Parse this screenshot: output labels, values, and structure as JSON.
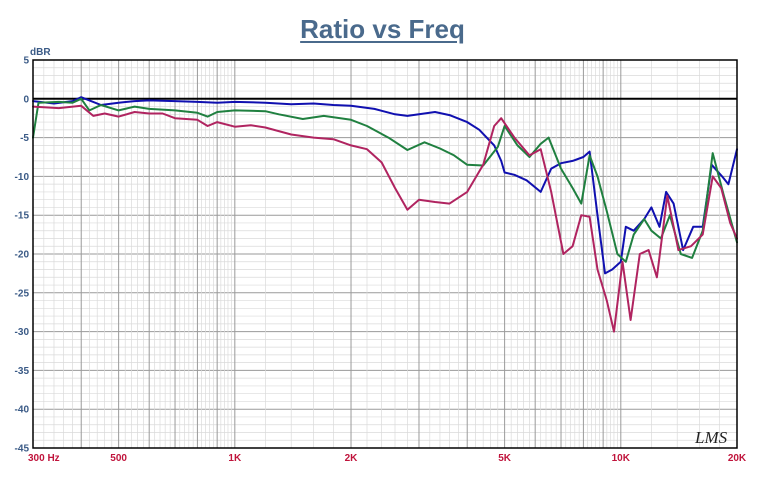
{
  "chart_data": {
    "type": "line",
    "title": "Ratio vs Freq",
    "ylabel": "dBR",
    "xscale": "log",
    "xlim": [
      300,
      20000
    ],
    "ylim": [
      -45,
      5
    ],
    "grid": true,
    "legend": "none",
    "watermark": "LMS",
    "y_ticks": [
      "5",
      "0",
      "-5",
      "-10",
      "-15",
      "-20",
      "-25",
      "-30",
      "-35",
      "-40",
      "-45"
    ],
    "x_ticks": [
      {
        "value": 300,
        "label": "300 Hz"
      },
      {
        "value": 500,
        "label": "500"
      },
      {
        "value": 1000,
        "label": "1K"
      },
      {
        "value": 2000,
        "label": "2K"
      },
      {
        "value": 5000,
        "label": "5K"
      },
      {
        "value": 10000,
        "label": "10K"
      },
      {
        "value": 20000,
        "label": "20K"
      }
    ],
    "series": [
      {
        "color": "#1010b0",
        "points": [
          [
            300,
            -0.3
          ],
          [
            340,
            -0.6
          ],
          [
            380,
            -0.3
          ],
          [
            400,
            0.2
          ],
          [
            420,
            -0.2
          ],
          [
            450,
            -0.8
          ],
          [
            500,
            -0.5
          ],
          [
            550,
            -0.3
          ],
          [
            600,
            -0.2
          ],
          [
            700,
            -0.3
          ],
          [
            800,
            -0.4
          ],
          [
            900,
            -0.5
          ],
          [
            1000,
            -0.4
          ],
          [
            1200,
            -0.5
          ],
          [
            1400,
            -0.7
          ],
          [
            1600,
            -0.6
          ],
          [
            1800,
            -0.8
          ],
          [
            2000,
            -0.9
          ],
          [
            2300,
            -1.3
          ],
          [
            2600,
            -2.0
          ],
          [
            2800,
            -2.2
          ],
          [
            3000,
            -2.0
          ],
          [
            3300,
            -1.7
          ],
          [
            3600,
            -2.1
          ],
          [
            4000,
            -3.0
          ],
          [
            4300,
            -4.0
          ],
          [
            4700,
            -6.0
          ],
          [
            4900,
            -8.0
          ],
          [
            5000,
            -9.5
          ],
          [
            5300,
            -9.8
          ],
          [
            5700,
            -10.5
          ],
          [
            6200,
            -12.0
          ],
          [
            6600,
            -9.0
          ],
          [
            7000,
            -8.3
          ],
          [
            7500,
            -8.0
          ],
          [
            8000,
            -7.5
          ],
          [
            8300,
            -6.8
          ],
          [
            8700,
            -15.0
          ],
          [
            9100,
            -22.5
          ],
          [
            9500,
            -22.0
          ],
          [
            10000,
            -21.0
          ],
          [
            10300,
            -16.5
          ],
          [
            10800,
            -17.0
          ],
          [
            11500,
            -15.5
          ],
          [
            12000,
            -14.0
          ],
          [
            12600,
            -16.5
          ],
          [
            13100,
            -12.0
          ],
          [
            13700,
            -13.5
          ],
          [
            14500,
            -19.5
          ],
          [
            15400,
            -16.5
          ],
          [
            16300,
            -16.5
          ],
          [
            17200,
            -8.5
          ],
          [
            18300,
            -10.0
          ],
          [
            19000,
            -11.0
          ],
          [
            20000,
            -6.5
          ]
        ]
      },
      {
        "color": "#208040",
        "points": [
          [
            300,
            -5.0
          ],
          [
            310,
            -0.5
          ],
          [
            350,
            -0.4
          ],
          [
            380,
            -0.5
          ],
          [
            400,
            0.0
          ],
          [
            420,
            -1.5
          ],
          [
            450,
            -0.8
          ],
          [
            500,
            -1.5
          ],
          [
            550,
            -1.0
          ],
          [
            600,
            -1.3
          ],
          [
            700,
            -1.5
          ],
          [
            800,
            -1.8
          ],
          [
            850,
            -2.3
          ],
          [
            900,
            -1.7
          ],
          [
            1000,
            -1.5
          ],
          [
            1200,
            -1.6
          ],
          [
            1300,
            -2.0
          ],
          [
            1500,
            -2.6
          ],
          [
            1700,
            -2.2
          ],
          [
            2000,
            -2.7
          ],
          [
            2200,
            -3.5
          ],
          [
            2500,
            -5.0
          ],
          [
            2800,
            -6.6
          ],
          [
            3100,
            -5.6
          ],
          [
            3400,
            -6.4
          ],
          [
            3700,
            -7.3
          ],
          [
            4000,
            -8.5
          ],
          [
            4400,
            -8.6
          ],
          [
            4800,
            -6.2
          ],
          [
            5000,
            -3.5
          ],
          [
            5400,
            -6.0
          ],
          [
            5800,
            -7.5
          ],
          [
            6200,
            -5.8
          ],
          [
            6500,
            -5.0
          ],
          [
            7000,
            -9.0
          ],
          [
            7500,
            -11.5
          ],
          [
            7900,
            -13.5
          ],
          [
            8300,
            -7.3
          ],
          [
            8700,
            -10.0
          ],
          [
            9200,
            -14.5
          ],
          [
            9800,
            -20.0
          ],
          [
            10300,
            -21.0
          ],
          [
            10800,
            -17.5
          ],
          [
            11500,
            -15.5
          ],
          [
            12000,
            -17.0
          ],
          [
            12700,
            -18.0
          ],
          [
            13400,
            -15.0
          ],
          [
            14300,
            -20.0
          ],
          [
            15300,
            -20.5
          ],
          [
            16300,
            -17.0
          ],
          [
            17300,
            -7.0
          ],
          [
            18500,
            -12.5
          ],
          [
            20000,
            -18.5
          ]
        ]
      },
      {
        "color": "#b02460",
        "points": [
          [
            300,
            -1.0
          ],
          [
            350,
            -1.2
          ],
          [
            400,
            -0.9
          ],
          [
            430,
            -2.2
          ],
          [
            460,
            -1.9
          ],
          [
            500,
            -2.3
          ],
          [
            550,
            -1.7
          ],
          [
            600,
            -1.9
          ],
          [
            650,
            -1.9
          ],
          [
            700,
            -2.5
          ],
          [
            800,
            -2.7
          ],
          [
            850,
            -3.5
          ],
          [
            900,
            -3.0
          ],
          [
            1000,
            -3.6
          ],
          [
            1100,
            -3.4
          ],
          [
            1200,
            -3.7
          ],
          [
            1400,
            -4.6
          ],
          [
            1600,
            -5.0
          ],
          [
            1800,
            -5.2
          ],
          [
            2000,
            -6.0
          ],
          [
            2200,
            -6.5
          ],
          [
            2400,
            -8.2
          ],
          [
            2600,
            -11.5
          ],
          [
            2800,
            -14.3
          ],
          [
            3000,
            -13.0
          ],
          [
            3300,
            -13.3
          ],
          [
            3600,
            -13.5
          ],
          [
            4000,
            -12.0
          ],
          [
            4400,
            -8.5
          ],
          [
            4700,
            -3.5
          ],
          [
            4900,
            -2.5
          ],
          [
            5300,
            -5.0
          ],
          [
            5800,
            -7.3
          ],
          [
            6200,
            -6.5
          ],
          [
            6600,
            -12.0
          ],
          [
            7100,
            -20.0
          ],
          [
            7500,
            -19.0
          ],
          [
            7900,
            -15.0
          ],
          [
            8300,
            -15.2
          ],
          [
            8700,
            -22.0
          ],
          [
            9200,
            -26.0
          ],
          [
            9600,
            -30.0
          ],
          [
            10100,
            -21.0
          ],
          [
            10600,
            -28.5
          ],
          [
            11200,
            -20.0
          ],
          [
            11800,
            -19.5
          ],
          [
            12400,
            -23.0
          ],
          [
            13200,
            -12.5
          ],
          [
            14100,
            -19.5
          ],
          [
            15200,
            -19.0
          ],
          [
            16300,
            -17.5
          ],
          [
            17300,
            -10.0
          ],
          [
            18200,
            -11.5
          ],
          [
            19200,
            -16.0
          ],
          [
            20000,
            -18.0
          ]
        ]
      }
    ]
  }
}
